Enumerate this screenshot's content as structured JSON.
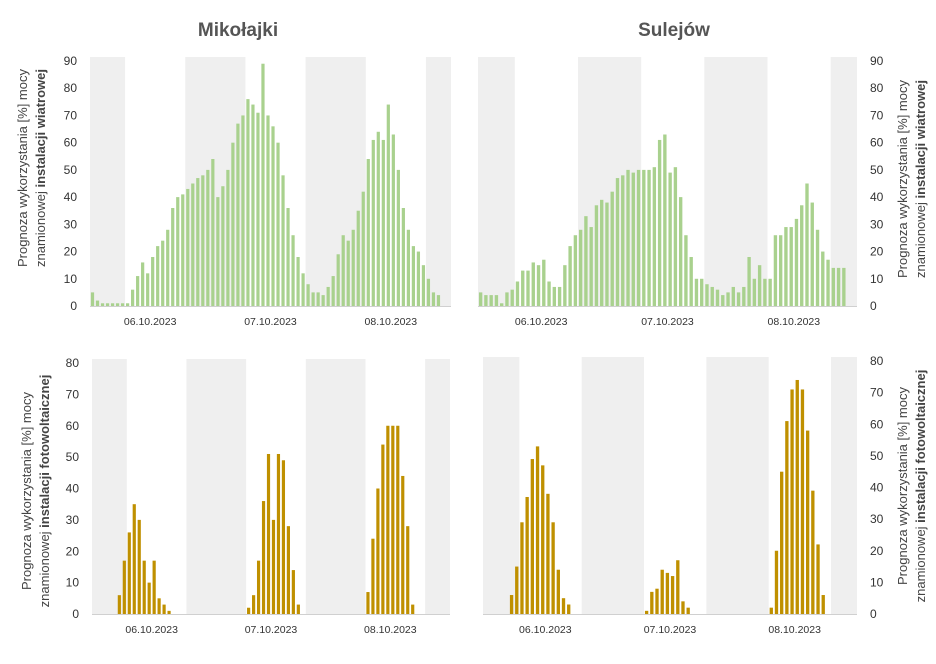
{
  "titles": {
    "left": "Mikołajki",
    "right": "Sulejów"
  },
  "axis_labels": {
    "wind": {
      "line1": "Prognoza wykorzystania [%] mocy",
      "line2_prefix": "znamionowej ",
      "line2_bold": "instalacji wiatrowej"
    },
    "pv": {
      "line1": "Prognoza wykorzystania [%] mocy",
      "line2_prefix": "znamionowej ",
      "line2_bold": "instalacji fotowoltaicznej"
    }
  },
  "colors": {
    "wind": "#a9d18e",
    "pv": "#bf9000",
    "night": "#efefef"
  },
  "chart_data": [
    {
      "name": "wind-mikolajki",
      "type": "bar",
      "site": "Mikołajki",
      "source": "wind",
      "ylim": [
        0,
        90
      ],
      "yticks": [
        0,
        10,
        20,
        30,
        40,
        50,
        60,
        70,
        80,
        90
      ],
      "ytick_side": "left",
      "date_labels": [
        {
          "label": "06.10.2023",
          "hour": 12
        },
        {
          "label": "07.10.2023",
          "hour": 36
        },
        {
          "label": "08.10.2023",
          "hour": 60
        }
      ],
      "night_bands": [
        [
          0,
          7
        ],
        [
          19,
          31
        ],
        [
          43,
          55
        ],
        [
          67,
          72
        ]
      ],
      "start_hour": 0,
      "values": [
        5,
        2,
        1,
        1,
        1,
        1,
        1,
        1,
        6,
        11,
        16,
        12,
        18,
        22,
        24,
        28,
        36,
        40,
        41,
        43,
        45,
        47,
        48,
        50,
        54,
        40,
        44,
        50,
        60,
        67,
        70,
        76,
        74,
        71,
        89,
        70,
        66,
        60,
        48,
        36,
        26,
        18,
        12,
        8,
        5,
        5,
        4,
        7,
        11,
        19,
        26,
        24,
        28,
        35,
        42,
        54,
        61,
        64,
        61,
        74,
        63,
        50,
        36,
        28,
        22,
        20,
        15,
        10,
        5,
        4
      ]
    },
    {
      "name": "wind-sulejow",
      "type": "bar",
      "site": "Sulejów",
      "source": "wind",
      "ylim": [
        0,
        90
      ],
      "yticks": [
        0,
        10,
        20,
        30,
        40,
        50,
        60,
        70,
        80,
        90
      ],
      "ytick_side": "right",
      "date_labels": [
        {
          "label": "06.10.2023",
          "hour": 12
        },
        {
          "label": "07.10.2023",
          "hour": 36
        },
        {
          "label": "08.10.2023",
          "hour": 60
        }
      ],
      "night_bands": [
        [
          0,
          7
        ],
        [
          19,
          31
        ],
        [
          43,
          55
        ],
        [
          67,
          72
        ]
      ],
      "start_hour": 0,
      "values": [
        5,
        4,
        4,
        4,
        1,
        5,
        6,
        9,
        13,
        13,
        16,
        15,
        17,
        9,
        7,
        7,
        15,
        22,
        26,
        28,
        33,
        29,
        37,
        39,
        38,
        42,
        47,
        48,
        50,
        49,
        50,
        50,
        50,
        51,
        61,
        63,
        49,
        51,
        40,
        26,
        18,
        10,
        10,
        8,
        7,
        6,
        4,
        5,
        7,
        5,
        7,
        18,
        10,
        15,
        10,
        10,
        26,
        26,
        29,
        29,
        32,
        37,
        45,
        38,
        28,
        20,
        17,
        14,
        14,
        14
      ]
    },
    {
      "name": "pv-mikolajki",
      "type": "bar",
      "site": "Mikołajki",
      "source": "pv",
      "ylim": [
        0,
        80
      ],
      "yticks": [
        0,
        10,
        20,
        30,
        40,
        50,
        60,
        70,
        80
      ],
      "ytick_side": "left",
      "date_labels": [
        {
          "label": "06.10.2023",
          "hour": 12
        },
        {
          "label": "07.10.2023",
          "hour": 36
        },
        {
          "label": "08.10.2023",
          "hour": 60
        }
      ],
      "night_bands": [
        [
          0,
          7
        ],
        [
          19,
          31
        ],
        [
          43,
          55
        ],
        [
          67,
          72
        ]
      ],
      "start_hour": 5,
      "values": [
        6,
        17,
        26,
        35,
        30,
        17,
        10,
        17,
        5,
        3,
        1,
        0,
        0,
        0,
        0,
        0,
        0,
        0,
        0,
        0,
        0,
        0,
        0,
        0,
        0,
        0,
        2,
        6,
        17,
        36,
        51,
        30,
        51,
        49,
        28,
        14,
        3,
        0,
        0,
        0,
        0,
        0,
        0,
        0,
        0,
        0,
        0,
        0,
        0,
        0,
        7,
        24,
        40,
        54,
        60,
        60,
        60,
        44,
        28,
        3
      ]
    },
    {
      "name": "pv-sulejow",
      "type": "bar",
      "site": "Sulejów",
      "source": "pv",
      "ylim": [
        0,
        80
      ],
      "yticks": [
        0,
        10,
        20,
        30,
        40,
        50,
        60,
        70,
        80
      ],
      "ytick_side": "right",
      "date_labels": [
        {
          "label": "06.10.2023",
          "hour": 12
        },
        {
          "label": "07.10.2023",
          "hour": 36
        },
        {
          "label": "08.10.2023",
          "hour": 60
        }
      ],
      "night_bands": [
        [
          0,
          7
        ],
        [
          19,
          31
        ],
        [
          43,
          55
        ],
        [
          67,
          72
        ]
      ],
      "start_hour": 5,
      "values": [
        6,
        15,
        29,
        37,
        49,
        53,
        47,
        38,
        29,
        14,
        5,
        3,
        0,
        0,
        0,
        0,
        0,
        0,
        0,
        0,
        0,
        0,
        0,
        0,
        0,
        0,
        1,
        7,
        8,
        14,
        13,
        12,
        17,
        4,
        2,
        0,
        0,
        0,
        0,
        0,
        0,
        0,
        0,
        0,
        0,
        0,
        0,
        0,
        0,
        0,
        2,
        20,
        45,
        61,
        71,
        74,
        71,
        58,
        39,
        22,
        6
      ]
    }
  ]
}
